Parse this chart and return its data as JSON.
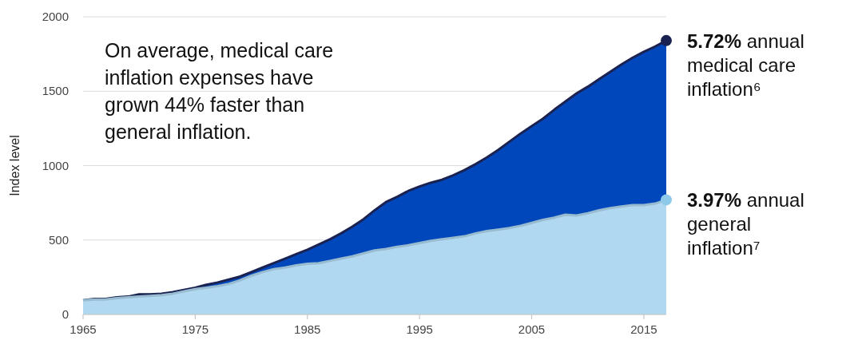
{
  "chart_data": {
    "type": "area",
    "ylabel": "Index level",
    "x": [
      1965,
      1966,
      1967,
      1968,
      1969,
      1970,
      1971,
      1972,
      1973,
      1974,
      1975,
      1976,
      1977,
      1978,
      1979,
      1980,
      1981,
      1982,
      1983,
      1984,
      1985,
      1986,
      1987,
      1988,
      1989,
      1990,
      1991,
      1992,
      1993,
      1994,
      1995,
      1996,
      1997,
      1998,
      1999,
      2000,
      2001,
      2002,
      2003,
      2004,
      2005,
      2006,
      2007,
      2008,
      2009,
      2010,
      2011,
      2012,
      2013,
      2014,
      2015,
      2016,
      2017
    ],
    "series": [
      {
        "name": "5.72% annual medical care inflation⁶",
        "color": "#0047bb",
        "values": [
          95,
          105,
          105,
          115,
          120,
          135,
          135,
          140,
          150,
          165,
          180,
          200,
          215,
          235,
          255,
          285,
          315,
          345,
          375,
          405,
          435,
          470,
          505,
          545,
          590,
          640,
          700,
          755,
          790,
          830,
          860,
          885,
          905,
          935,
          970,
          1010,
          1055,
          1105,
          1160,
          1215,
          1265,
          1315,
          1375,
          1430,
          1485,
          1530,
          1580,
          1630,
          1680,
          1725,
          1765,
          1800,
          1840
        ]
      },
      {
        "name": "3.97% annual general inflation⁷",
        "color": "#b0d8f0",
        "values": [
          95,
          100,
          100,
          110,
          115,
          120,
          125,
          130,
          140,
          155,
          170,
          180,
          190,
          205,
          230,
          260,
          285,
          305,
          315,
          330,
          340,
          345,
          360,
          375,
          390,
          410,
          430,
          440,
          455,
          465,
          480,
          495,
          505,
          515,
          525,
          545,
          560,
          570,
          580,
          595,
          615,
          635,
          650,
          670,
          665,
          680,
          700,
          715,
          725,
          735,
          735,
          745,
          770
        ]
      }
    ],
    "xlim": [
      1965,
      2017
    ],
    "xticks": [
      1965,
      1975,
      1985,
      1995,
      2005,
      2015
    ],
    "ylim": [
      0,
      2000
    ],
    "yticks": [
      0,
      500,
      1000,
      1500,
      2000
    ],
    "grid": "y",
    "annotations": [
      "On average, medical care inflation expenses have grown 44% faster than general inflation."
    ]
  }
}
